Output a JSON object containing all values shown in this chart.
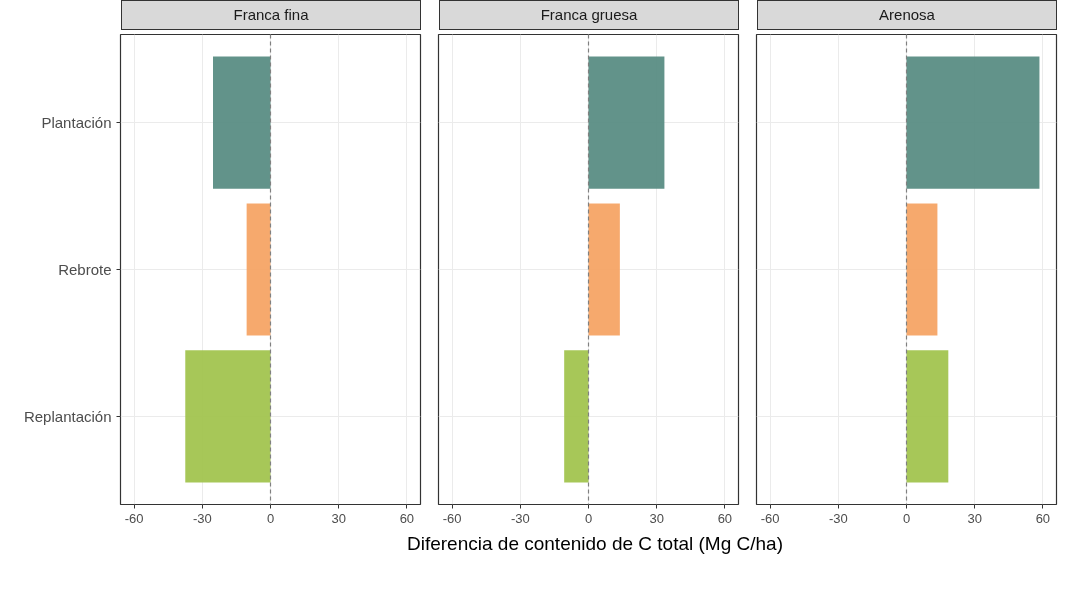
{
  "chart_data": [
    {
      "type": "bar",
      "orientation": "horizontal",
      "title": "Franca fina",
      "categories": [
        "Plantación",
        "Rebrote",
        "Replantación"
      ],
      "values": [
        -25.3,
        -10.5,
        -37.5
      ],
      "colors": [
        "#5a8d84",
        "#f5a465",
        "#a2c44f"
      ],
      "xlim": [
        -66,
        66
      ],
      "xticks": [
        -60,
        -30,
        0,
        30,
        60
      ],
      "grid": true,
      "ref_lines": [
        {
          "axis": "x",
          "value": 0,
          "line_style": "dashed",
          "color": "#808080"
        }
      ]
    },
    {
      "type": "bar",
      "orientation": "horizontal",
      "title": "Franca gruesa",
      "xlabel": "Diferencia de contenido de C total (Mg C/ha)",
      "categories": [
        null,
        null,
        null
      ],
      "values": [
        33.4,
        13.8,
        -10.7
      ],
      "colors": [
        "#5a8d84",
        "#f5a465",
        "#a2c44f"
      ],
      "xlim": [
        -66,
        66
      ],
      "xticks": [
        -60,
        -30,
        0,
        30,
        60
      ],
      "grid": true,
      "tick_labels": "x",
      "ref_lines": [
        {
          "axis": "x",
          "value": 0,
          "line_style": "dashed",
          "color": "#808080"
        }
      ]
    },
    {
      "type": "bar",
      "orientation": "horizontal",
      "title": "Arenosa",
      "categories": [
        null,
        null,
        null
      ],
      "values": [
        58.5,
        13.6,
        18.4
      ],
      "colors": [
        "#5a8d84",
        "#f5a465",
        "#a2c44f"
      ],
      "xlim": [
        -66,
        66
      ],
      "xticks": [
        -60,
        -30,
        0,
        30,
        60
      ],
      "grid": true,
      "tick_labels": "x",
      "ref_lines": [
        {
          "axis": "x",
          "value": 0,
          "line_style": "dashed",
          "color": "#808080"
        }
      ]
    }
  ]
}
